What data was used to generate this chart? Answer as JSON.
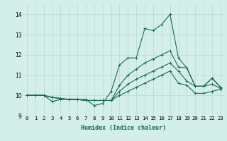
{
  "xlabel": "Humidex (Indice chaleur)",
  "xlim": [
    -0.5,
    23.5
  ],
  "ylim": [
    9.0,
    14.5
  ],
  "yticks": [
    9,
    10,
    11,
    12,
    13,
    14
  ],
  "xticks": [
    0,
    1,
    2,
    3,
    4,
    5,
    6,
    7,
    8,
    9,
    10,
    11,
    12,
    13,
    14,
    15,
    16,
    17,
    18,
    19,
    20,
    21,
    22,
    23
  ],
  "bg_color": "#d4eeea",
  "line_color": "#1a6b5a",
  "grid_color": "#b8d8d4",
  "lines": [
    [
      10.0,
      10.0,
      10.0,
      9.7,
      9.8,
      9.8,
      9.8,
      9.8,
      9.5,
      9.6,
      10.2,
      11.5,
      11.85,
      11.85,
      13.3,
      13.2,
      13.5,
      14.0,
      11.85,
      11.35,
      10.45,
      10.45,
      10.85,
      10.4
    ],
    [
      10.0,
      10.0,
      10.0,
      9.9,
      9.85,
      9.8,
      9.8,
      9.75,
      9.75,
      9.75,
      9.75,
      10.5,
      11.0,
      11.3,
      11.6,
      11.8,
      12.0,
      12.2,
      11.4,
      11.35,
      10.45,
      10.45,
      10.85,
      10.4
    ],
    [
      10.0,
      10.0,
      10.0,
      9.9,
      9.85,
      9.8,
      9.8,
      9.75,
      9.75,
      9.75,
      9.75,
      10.2,
      10.55,
      10.8,
      11.0,
      11.2,
      11.4,
      11.6,
      11.2,
      10.7,
      10.45,
      10.45,
      10.55,
      10.35
    ],
    [
      10.0,
      10.0,
      10.0,
      9.9,
      9.85,
      9.8,
      9.8,
      9.75,
      9.75,
      9.75,
      9.75,
      10.0,
      10.2,
      10.4,
      10.6,
      10.8,
      11.0,
      11.2,
      10.6,
      10.5,
      10.1,
      10.1,
      10.2,
      10.3
    ]
  ],
  "marker": "+",
  "markersize": 2.5,
  "linewidth": 0.8,
  "xlabel_fontsize": 6.0,
  "tick_fontsize": 5.2
}
